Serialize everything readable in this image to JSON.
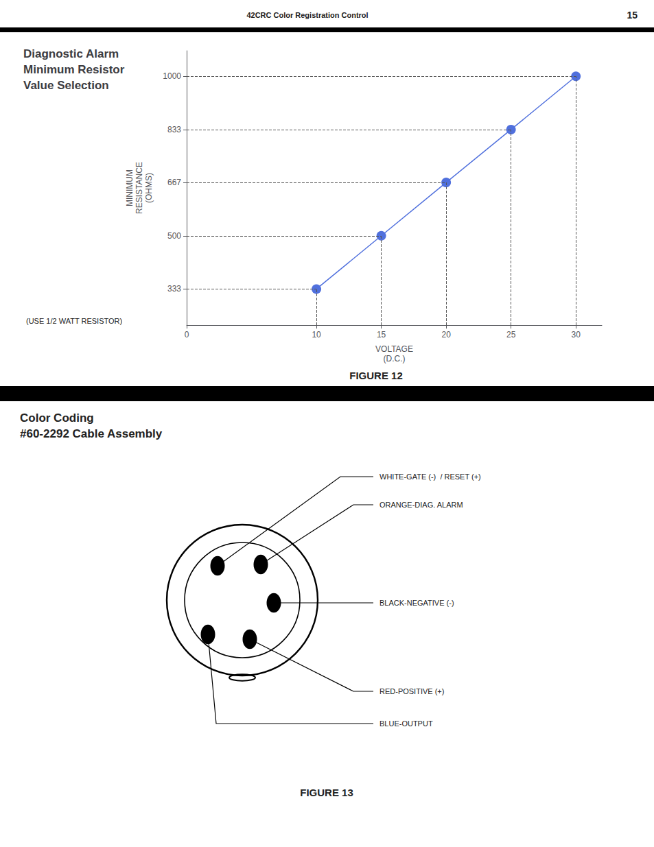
{
  "chart_data": {
    "type": "line",
    "title": "Diagnostic Alarm\nMinimum Resistor\nValue Selection",
    "x": [
      10,
      15,
      20,
      25,
      30
    ],
    "values": [
      333,
      500,
      667,
      833,
      1000
    ],
    "xlim": [
      0,
      32
    ],
    "ylim": [
      220,
      1080
    ],
    "xticks": [
      0,
      10,
      15,
      20,
      25,
      30
    ],
    "yticks": [
      333,
      500,
      667,
      833,
      1000
    ],
    "xlabel": "VOLTAGE\n(D.C.)",
    "ylabel": "MINIMUM\nRESISTANCE\n(OHMS)",
    "marker": "circle",
    "line_style": "solid",
    "grid": false,
    "annotations": [
      "(USE 1/2 WATT RESISTOR)",
      "FIGURE 12"
    ]
  },
  "page": {
    "header": "42CRC Color Registration Control",
    "page_number": "15"
  },
  "diagram": {
    "title": "Color Coding\n#60-2292 Cable Assembly",
    "labels": [
      "WHITE-GATE (-)  / RESET (+)",
      "ORANGE-DIAG. ALARM",
      "BLACK-NEGATIVE (-)",
      "RED-POSITIVE (+)",
      "BLUE-OUTPUT"
    ],
    "figure_label": "FIGURE 13"
  }
}
